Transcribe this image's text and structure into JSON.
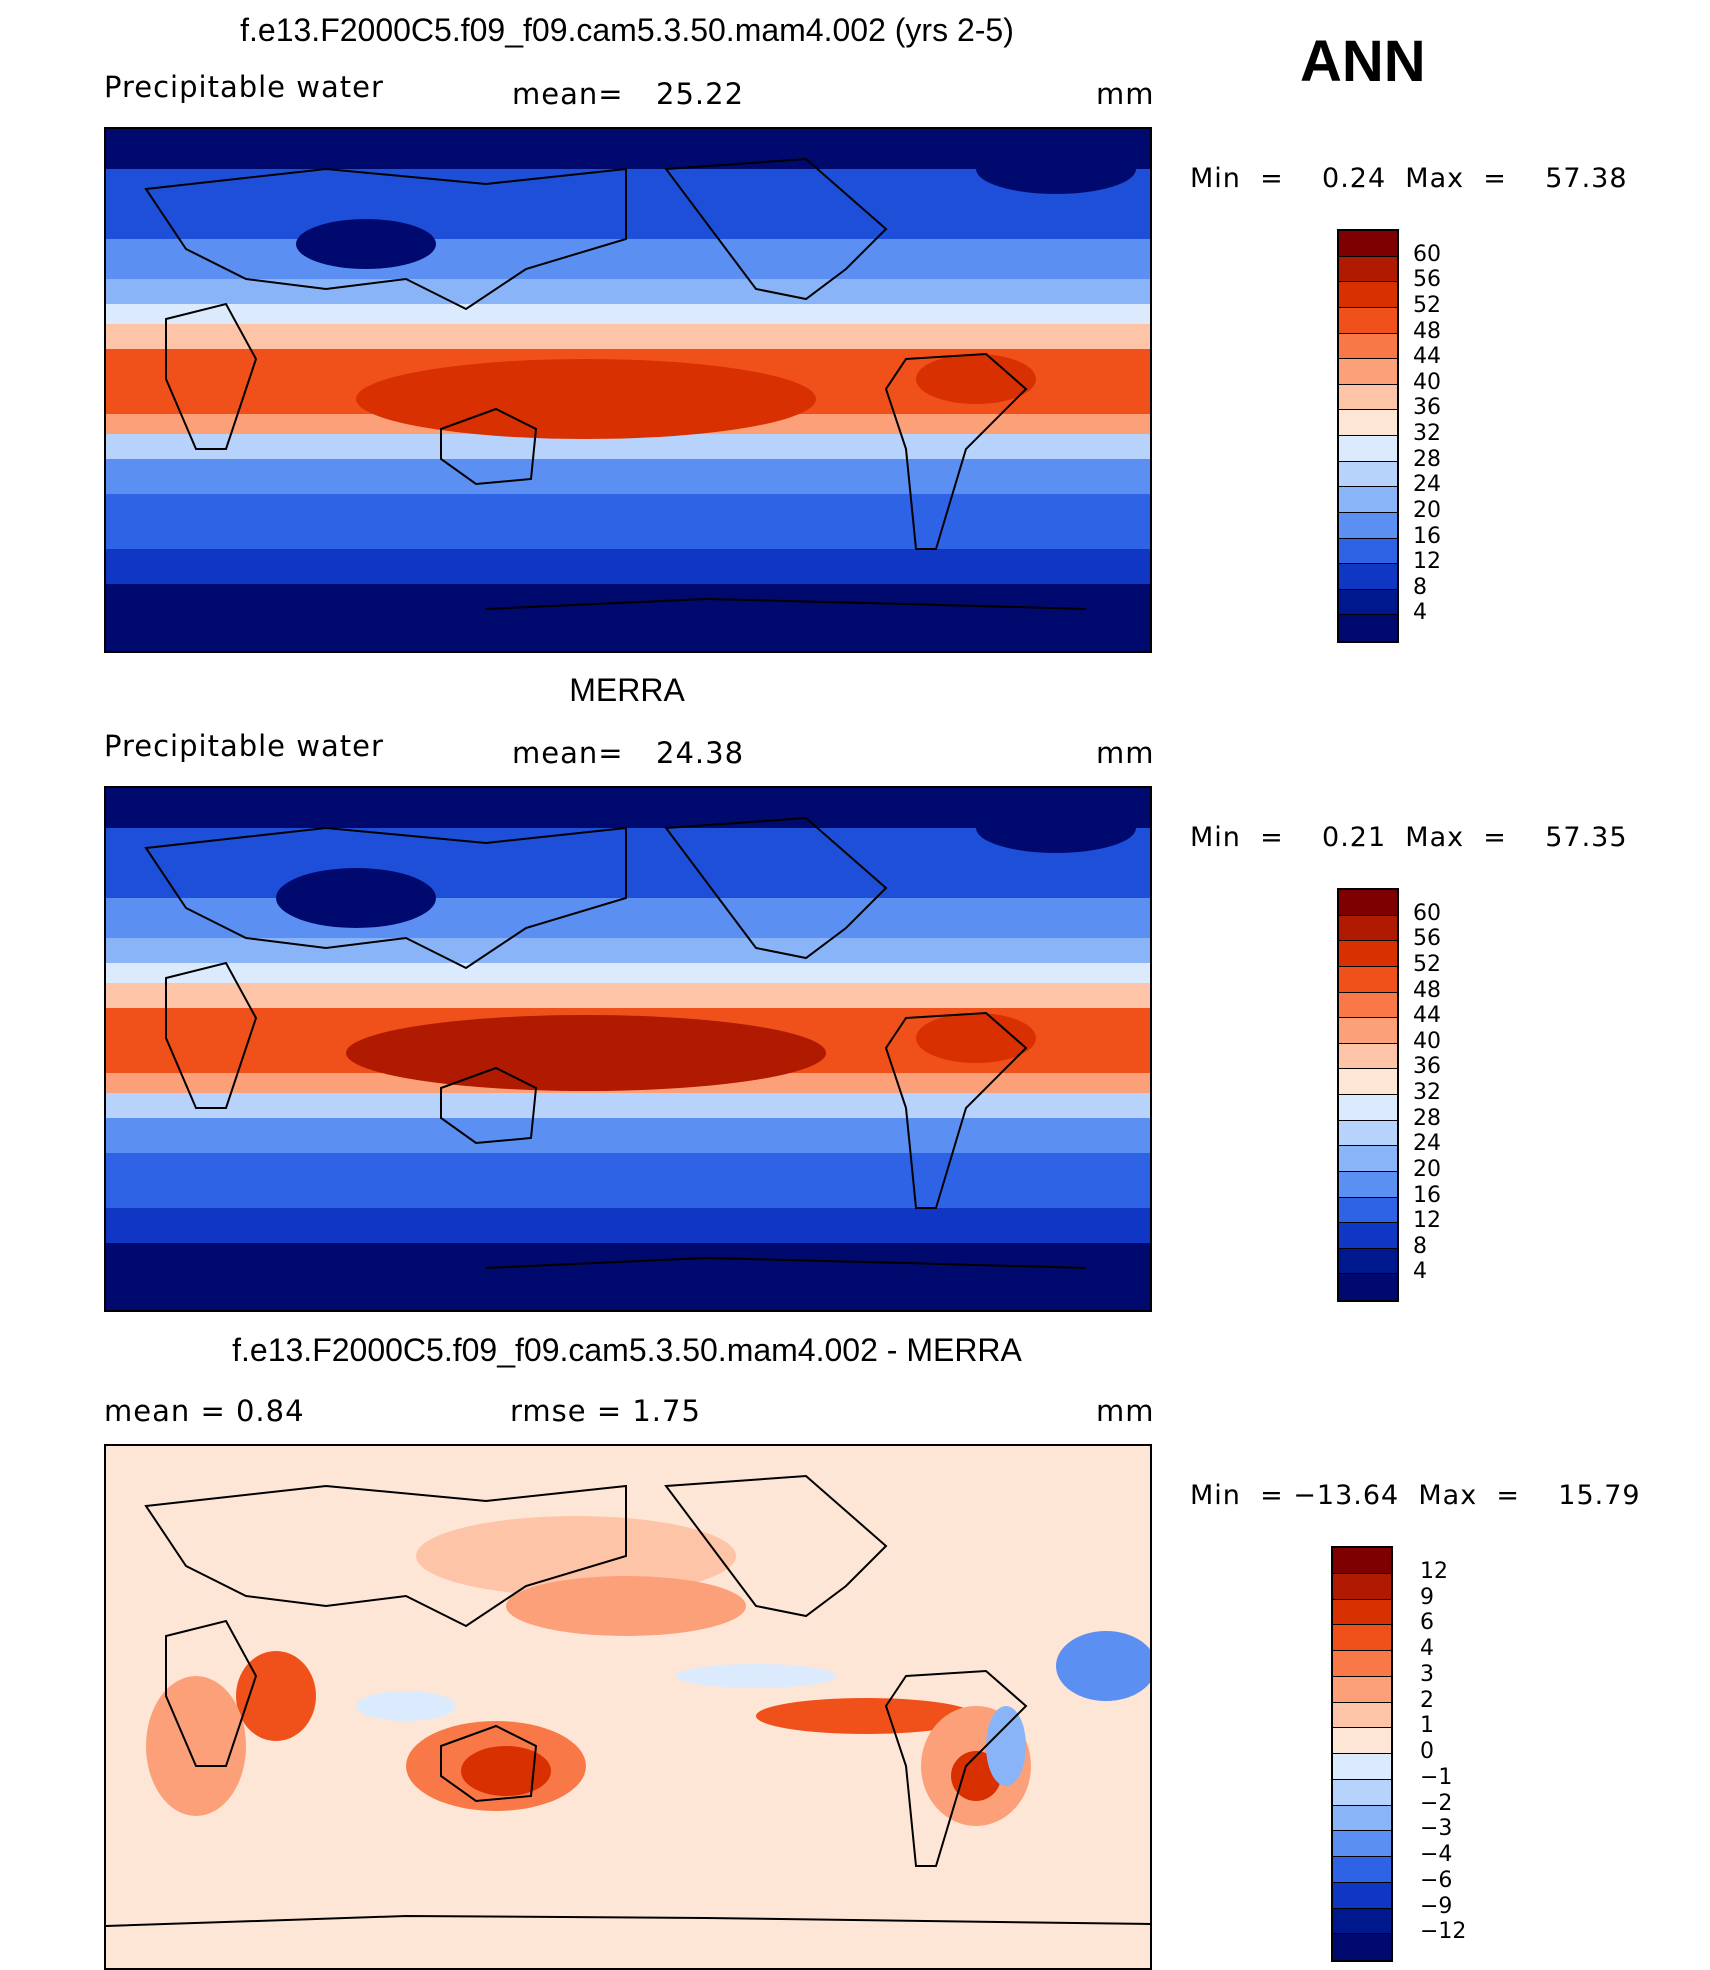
{
  "season": "ANN",
  "panels": [
    {
      "id": "model",
      "title": "f.e13.F2000C5.f09_f09.cam5.3.50.mam4.002 (yrs 2-5)",
      "left_label": "Precipitable  water",
      "stat_label": "mean=",
      "stat_value": "25.22",
      "unit": "mm",
      "minmax": "Min  =    0.24  Max  =    57.38",
      "colorbar": {
        "labels": [
          "60",
          "56",
          "52",
          "48",
          "44",
          "40",
          "36",
          "32",
          "28",
          "24",
          "20",
          "16",
          "12",
          "8",
          "4"
        ],
        "colors": [
          "#7f0000",
          "#b01a00",
          "#d83000",
          "#f0501a",
          "#f87848",
          "#fca07a",
          "#fdc4a8",
          "#fee6d6",
          "#dbeafc",
          "#b8d3fb",
          "#8ab4f8",
          "#5b8ff2",
          "#2f63e6",
          "#1037c4",
          "#00188e",
          "#000a6e"
        ]
      }
    },
    {
      "id": "obs",
      "title": "MERRA",
      "left_label": "Precipitable  water",
      "stat_label": "mean=",
      "stat_value": "24.38",
      "unit": "mm",
      "minmax": "Min  =    0.21  Max  =    57.35",
      "colorbar": {
        "labels": [
          "60",
          "56",
          "52",
          "48",
          "44",
          "40",
          "36",
          "32",
          "28",
          "24",
          "20",
          "16",
          "12",
          "8",
          "4"
        ],
        "colors": [
          "#7f0000",
          "#b01a00",
          "#d83000",
          "#f0501a",
          "#f87848",
          "#fca07a",
          "#fdc4a8",
          "#fee6d6",
          "#dbeafc",
          "#b8d3fb",
          "#8ab4f8",
          "#5b8ff2",
          "#2f63e6",
          "#1037c4",
          "#00188e",
          "#000a6e"
        ]
      }
    },
    {
      "id": "diff",
      "title": "f.e13.F2000C5.f09_f09.cam5.3.50.mam4.002 - MERRA",
      "left_label": "mean  =     0.84",
      "stat_label": "rmse  =     1.75",
      "stat_value": "",
      "unit": "mm",
      "minmax": "Min  = −13.64  Max  =    15.79",
      "colorbar": {
        "labels": [
          "12",
          "9",
          "6",
          "4",
          "3",
          "2",
          "1",
          "0",
          "−1",
          "−2",
          "−3",
          "−4",
          "−6",
          "−9",
          "−12"
        ],
        "colors": [
          "#7f0000",
          "#b01a00",
          "#d83000",
          "#f0501a",
          "#f87848",
          "#fca07a",
          "#fdc4a8",
          "#fee6d6",
          "#dbeafc",
          "#b8d3fb",
          "#8ab4f8",
          "#5b8ff2",
          "#2f63e6",
          "#1037c4",
          "#00188e",
          "#000a6e"
        ]
      }
    }
  ]
}
